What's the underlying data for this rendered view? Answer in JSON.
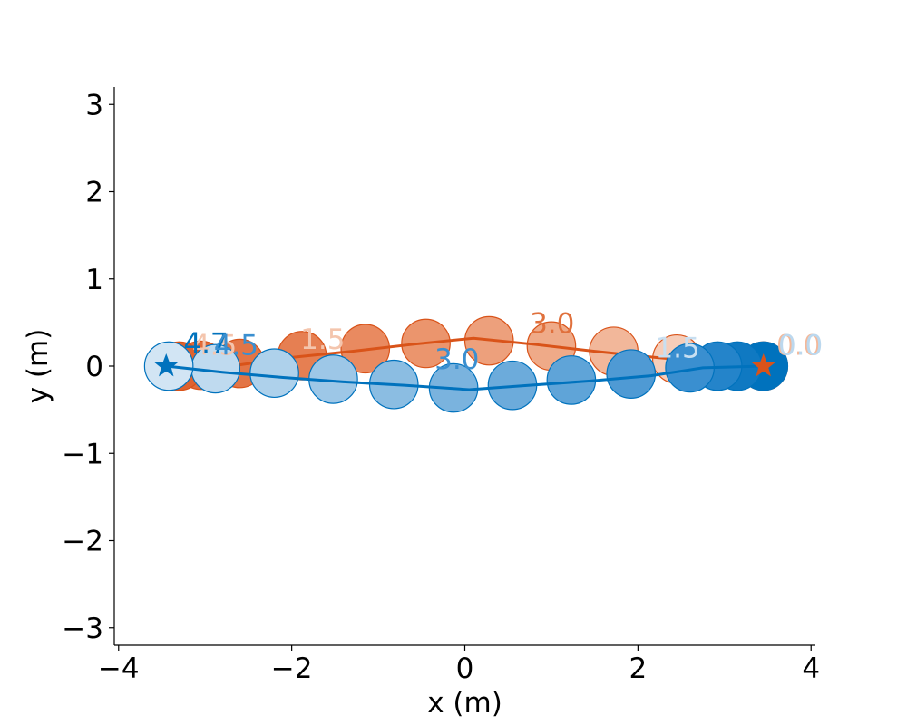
{
  "chart_data": {
    "type": "scatter",
    "title": "",
    "xlabel": "x (m)",
    "ylabel": "y (m)",
    "xlim": [
      -4.05,
      4.05
    ],
    "ylim": [
      -3.2,
      3.2
    ],
    "xticks": [
      -4,
      -2,
      0,
      2,
      4
    ],
    "yticks": [
      -3,
      -2,
      -1,
      0,
      1,
      2,
      3
    ],
    "xtick_labels": [
      "−4",
      "−2",
      "0",
      "2",
      "4"
    ],
    "ytick_labels": [
      "−3",
      "−2",
      "−1",
      "0",
      "1",
      "2",
      "3"
    ],
    "grid": false,
    "legend": "none",
    "series": [
      {
        "color": "#d95319",
        "line_color": "#d95319",
        "goal_x": 3.45,
        "goal_y": 0.0,
        "path_x": [
          3.45,
          2.9,
          2.2,
          1.5,
          0.8,
          0.1,
          -0.6,
          -1.3,
          -2.0,
          -2.7,
          -3.45
        ],
        "path_y": [
          0.0,
          0.04,
          0.1,
          0.17,
          0.25,
          0.32,
          0.25,
          0.17,
          0.1,
          0.0,
          0.0
        ],
        "circles": [
          {
            "x": 3.45,
            "y": 0.0,
            "fill": "#d95319",
            "alpha": 1.0
          },
          {
            "x": 2.45,
            "y": 0.08,
            "fill": "#f6cdb9",
            "alpha": 1.0
          },
          {
            "x": 1.72,
            "y": 0.17,
            "fill": "#f2b79a",
            "alpha": 1.0
          },
          {
            "x": 1.0,
            "y": 0.23,
            "fill": "#efaa88",
            "alpha": 1.0
          },
          {
            "x": 0.28,
            "y": 0.29,
            "fill": "#eda07c",
            "alpha": 1.0
          },
          {
            "x": -0.45,
            "y": 0.26,
            "fill": "#eb956d",
            "alpha": 1.0
          },
          {
            "x": -1.15,
            "y": 0.2,
            "fill": "#e98a60",
            "alpha": 1.0
          },
          {
            "x": -1.88,
            "y": 0.12,
            "fill": "#e67f52",
            "alpha": 1.0
          },
          {
            "x": -2.6,
            "y": 0.03,
            "fill": "#e37546",
            "alpha": 1.0
          },
          {
            "x": -3.05,
            "y": 0.01,
            "fill": "#e16b3a",
            "alpha": 1.0
          },
          {
            "x": -3.3,
            "y": 0.0,
            "fill": "#de622f",
            "alpha": 1.0
          }
        ],
        "time_labels": [
          {
            "x": 3.6,
            "y": 0.13,
            "text": "0.0",
            "color": "#f4b899"
          },
          {
            "x": -1.9,
            "y": 0.2,
            "text": "1.5",
            "color": "#f4c5ad"
          },
          {
            "x": 0.75,
            "y": 0.38,
            "text": "3.0",
            "color": "#e0703c"
          },
          {
            "x": -3.15,
            "y": 0.13,
            "text": "4.5",
            "color": "#f4c5ad"
          }
        ]
      },
      {
        "color": "#0072bd",
        "line_color": "#0072bd",
        "goal_x": -3.45,
        "goal_y": 0.0,
        "path_x": [
          -3.45,
          -2.8,
          -2.1,
          -1.4,
          -0.7,
          0.05,
          0.75,
          1.45,
          2.15,
          2.75,
          3.45
        ],
        "path_y": [
          0.0,
          -0.07,
          -0.13,
          -0.18,
          -0.22,
          -0.27,
          -0.22,
          -0.17,
          -0.11,
          -0.02,
          0.0
        ],
        "circles": [
          {
            "x": 3.45,
            "y": 0.0,
            "fill": "#0072bd",
            "alpha": 1.0
          },
          {
            "x": 3.15,
            "y": 0.0,
            "fill": "#0f79c2",
            "alpha": 1.0
          },
          {
            "x": 2.92,
            "y": 0.0,
            "fill": "#2484ca",
            "alpha": 1.0
          },
          {
            "x": 2.6,
            "y": -0.02,
            "fill": "#3a8fd0",
            "alpha": 1.0
          },
          {
            "x": 1.92,
            "y": -0.09,
            "fill": "#4f9ad4",
            "alpha": 1.0
          },
          {
            "x": 1.23,
            "y": -0.16,
            "fill": "#5fa4d8",
            "alpha": 1.0
          },
          {
            "x": 0.55,
            "y": -0.22,
            "fill": "#6cabdb",
            "alpha": 1.0
          },
          {
            "x": -0.13,
            "y": -0.25,
            "fill": "#7ab3de",
            "alpha": 1.0
          },
          {
            "x": -0.82,
            "y": -0.21,
            "fill": "#8bbde2",
            "alpha": 1.0
          },
          {
            "x": -1.52,
            "y": -0.15,
            "fill": "#9dc7e7",
            "alpha": 1.0
          },
          {
            "x": -2.2,
            "y": -0.08,
            "fill": "#aed1eb",
            "alpha": 1.0
          },
          {
            "x": -2.88,
            "y": -0.03,
            "fill": "#bfdaef",
            "alpha": 1.0
          },
          {
            "x": -3.42,
            "y": 0.0,
            "fill": "#d2e5f4",
            "alpha": 1.0
          }
        ],
        "time_labels": [
          {
            "x": 3.62,
            "y": 0.13,
            "text": "0.0",
            "color": "#bcd8ee"
          },
          {
            "x": 2.2,
            "y": 0.1,
            "text": "1.5",
            "color": "#c8dff1"
          },
          {
            "x": -0.35,
            "y": -0.03,
            "text": "3.0",
            "color": "#3a8fd0"
          },
          {
            "x": -3.25,
            "y": 0.15,
            "text": "4.7",
            "color": "#0072bd"
          },
          {
            "x": -2.9,
            "y": 0.13,
            "text": "4.5",
            "color": "#3a8fd0"
          }
        ]
      }
    ]
  }
}
